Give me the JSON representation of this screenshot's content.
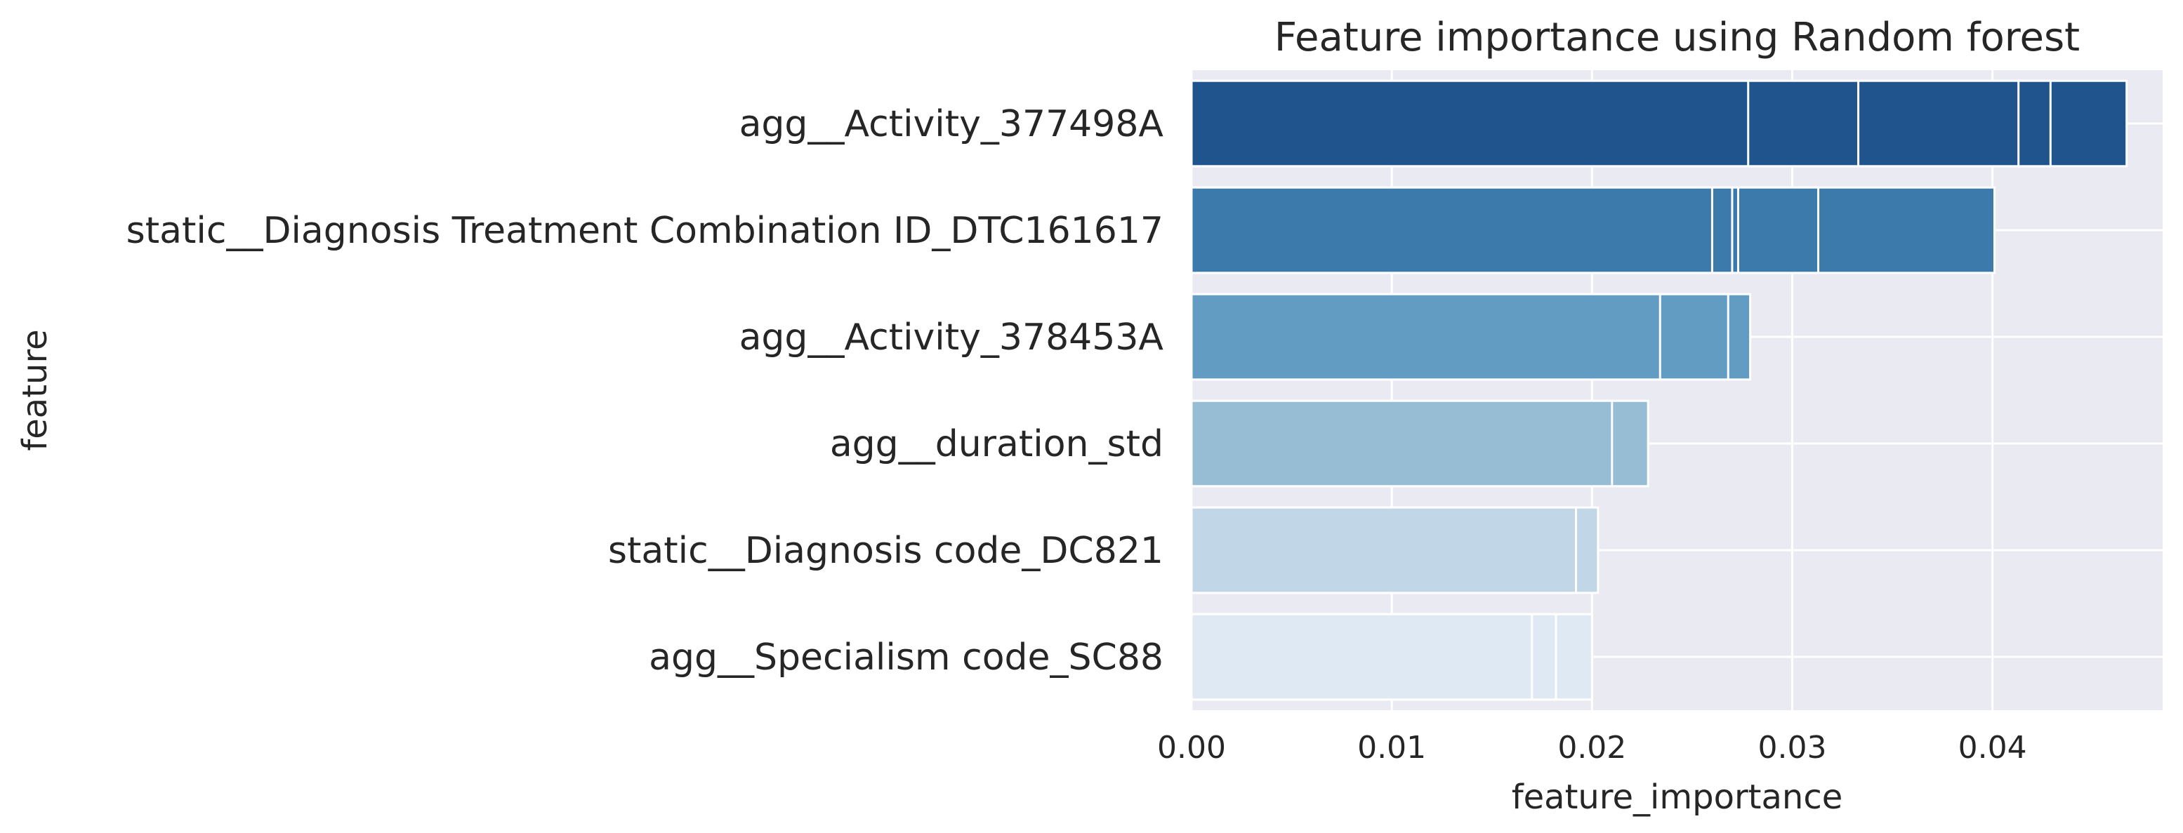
{
  "chart_data": {
    "type": "bar",
    "orientation": "horizontal",
    "title": "Feature importance using Random forest",
    "xlabel": "feature_importance",
    "ylabel": "feature",
    "xlim": [
      0,
      0.0485
    ],
    "xticks": [
      "0.00",
      "0.01",
      "0.02",
      "0.03",
      "0.04"
    ],
    "grid": true,
    "categories": [
      "agg__Activity_377498A",
      "static__Diagnosis Treatment Combination ID_DTC161617",
      "agg__Activity_378453A",
      "agg__duration_std",
      "static__Diagnosis code_DC821",
      "agg__Specialism code_SC88"
    ],
    "bar_segments": [
      [
        0.0278,
        0.0333,
        0.0413,
        0.0429,
        0.0467
      ],
      [
        0.026,
        0.027,
        0.0273,
        0.0313,
        0.0401
      ],
      [
        0.0234,
        0.0268,
        0.0279
      ],
      [
        0.021,
        0.0228
      ],
      [
        0.0192,
        0.0203
      ],
      [
        0.017,
        0.0182,
        0.02
      ]
    ],
    "colors": [
      "#1f558c",
      "#3b7aaa",
      "#629cc2",
      "#96bdd4",
      "#c1d6e7",
      "#dfe9f3"
    ],
    "background_color": "#eaeaf2",
    "grid_color": "#ffffff"
  }
}
